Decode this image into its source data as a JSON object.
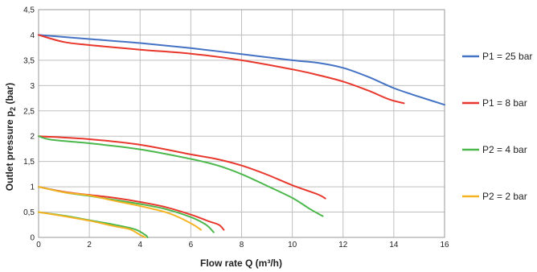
{
  "chart_data": {
    "type": "line",
    "xlabel": "Flow rate Q (m³/h)",
    "ylabel_main": "Outlet pressure p",
    "ylabel_sub": "2",
    "ylabel_tail": " (bar)",
    "xlim": [
      0,
      16
    ],
    "ylim": [
      0,
      4.5
    ],
    "xticks": [
      0,
      2,
      4,
      6,
      8,
      10,
      12,
      14,
      16
    ],
    "xtick_labels": [
      "0",
      "2",
      "4",
      "6",
      "8",
      "10",
      "12",
      "14",
      "16"
    ],
    "yticks": [
      0,
      0.5,
      1,
      1.5,
      2,
      2.5,
      3,
      3.5,
      4,
      4.5
    ],
    "ytick_labels": [
      "0",
      "0,5",
      "1",
      "1,5",
      "2",
      "2,5",
      "3",
      "3,5",
      "4",
      "4,5"
    ],
    "grid": true,
    "legend_position": "right",
    "legend": [
      {
        "label": "P1 = 25 bar",
        "color": "#4472C4"
      },
      {
        "label": "P1 = 8 bar",
        "color": "#E8372C"
      },
      {
        "label": "P2 = 4 bar",
        "color": "#4CB84C"
      },
      {
        "label": "P2 = 2 bar",
        "color": "#F5B324"
      }
    ],
    "series": [
      {
        "color": "#4472C4",
        "points": [
          [
            0,
            4.0
          ],
          [
            2,
            3.92
          ],
          [
            4,
            3.84
          ],
          [
            6,
            3.74
          ],
          [
            8,
            3.62
          ],
          [
            10,
            3.5
          ],
          [
            11,
            3.45
          ],
          [
            12,
            3.35
          ],
          [
            13,
            3.17
          ],
          [
            14,
            2.95
          ],
          [
            15,
            2.78
          ],
          [
            16,
            2.62
          ]
        ]
      },
      {
        "color": "#E8372C",
        "points": [
          [
            0,
            4.0
          ],
          [
            1,
            3.86
          ],
          [
            2,
            3.8
          ],
          [
            4,
            3.71
          ],
          [
            6,
            3.63
          ],
          [
            8,
            3.5
          ],
          [
            10,
            3.32
          ],
          [
            11,
            3.21
          ],
          [
            12,
            3.08
          ],
          [
            13,
            2.9
          ],
          [
            13.8,
            2.73
          ],
          [
            14.4,
            2.65
          ]
        ]
      },
      {
        "color": "#E8372C",
        "points": [
          [
            0,
            2.0
          ],
          [
            2,
            1.94
          ],
          [
            4,
            1.83
          ],
          [
            6,
            1.64
          ],
          [
            7,
            1.55
          ],
          [
            8,
            1.42
          ],
          [
            9,
            1.24
          ],
          [
            10,
            1.03
          ],
          [
            11,
            0.85
          ],
          [
            11.3,
            0.77
          ]
        ]
      },
      {
        "color": "#4CB84C",
        "points": [
          [
            0,
            2.0
          ],
          [
            0.5,
            1.93
          ],
          [
            2,
            1.86
          ],
          [
            4,
            1.74
          ],
          [
            6,
            1.55
          ],
          [
            7,
            1.43
          ],
          [
            8,
            1.25
          ],
          [
            9,
            1.02
          ],
          [
            10,
            0.78
          ],
          [
            10.7,
            0.56
          ],
          [
            11.2,
            0.42
          ]
        ]
      },
      {
        "color": "#E8372C",
        "points": [
          [
            0,
            1.0
          ],
          [
            1,
            0.9
          ],
          [
            2,
            0.84
          ],
          [
            3,
            0.78
          ],
          [
            4,
            0.7
          ],
          [
            5,
            0.6
          ],
          [
            6,
            0.45
          ],
          [
            6.7,
            0.32
          ],
          [
            7.1,
            0.25
          ],
          [
            7.3,
            0.15
          ]
        ]
      },
      {
        "color": "#4CB84C",
        "points": [
          [
            0,
            1.0
          ],
          [
            1,
            0.89
          ],
          [
            2,
            0.82
          ],
          [
            3,
            0.74
          ],
          [
            4,
            0.66
          ],
          [
            5,
            0.56
          ],
          [
            6,
            0.4
          ],
          [
            6.6,
            0.25
          ],
          [
            6.9,
            0.1
          ]
        ]
      },
      {
        "color": "#F5B324",
        "points": [
          [
            0,
            1.0
          ],
          [
            1,
            0.89
          ],
          [
            2,
            0.83
          ],
          [
            3,
            0.72
          ],
          [
            4,
            0.62
          ],
          [
            5,
            0.5
          ],
          [
            5.6,
            0.38
          ],
          [
            6.1,
            0.25
          ],
          [
            6.4,
            0.15
          ]
        ]
      },
      {
        "color": "#4CB84C",
        "points": [
          [
            0,
            0.5
          ],
          [
            1,
            0.43
          ],
          [
            2,
            0.34
          ],
          [
            3,
            0.25
          ],
          [
            3.8,
            0.16
          ],
          [
            4.2,
            0.05
          ],
          [
            4.3,
            0.0
          ]
        ]
      },
      {
        "color": "#F5B324",
        "points": [
          [
            0,
            0.5
          ],
          [
            1,
            0.42
          ],
          [
            2,
            0.33
          ],
          [
            3,
            0.22
          ],
          [
            3.6,
            0.16
          ],
          [
            4.0,
            0.05
          ],
          [
            4.2,
            0.0
          ]
        ]
      }
    ]
  }
}
